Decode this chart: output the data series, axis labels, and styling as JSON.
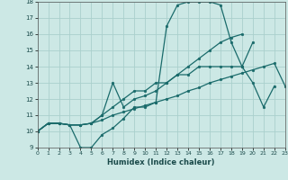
{
  "xlabel": "Humidex (Indice chaleur)",
  "xlim": [
    0,
    23
  ],
  "ylim": [
    9,
    18
  ],
  "xticks": [
    0,
    1,
    2,
    3,
    4,
    5,
    6,
    7,
    8,
    9,
    10,
    11,
    12,
    13,
    14,
    15,
    16,
    17,
    18,
    19,
    20,
    21,
    22,
    23
  ],
  "yticks": [
    9,
    10,
    11,
    12,
    13,
    14,
    15,
    16,
    17,
    18
  ],
  "background_color": "#cce8e5",
  "grid_color": "#aad0cc",
  "line_color": "#1a6b6b",
  "lines": [
    {
      "x": [
        0,
        1,
        2,
        3,
        4,
        5,
        6,
        7,
        8,
        9,
        10,
        11,
        12,
        13,
        14,
        15,
        16,
        17,
        18,
        19,
        20
      ],
      "y": [
        10.0,
        10.5,
        10.5,
        10.4,
        9.0,
        9.0,
        9.8,
        10.2,
        10.8,
        11.5,
        11.5,
        11.8,
        16.5,
        17.8,
        18.0,
        18.0,
        18.0,
        17.8,
        15.5,
        14.0,
        15.5
      ]
    },
    {
      "x": [
        0,
        1,
        2,
        3,
        4,
        5,
        6,
        7,
        8,
        9,
        10,
        11,
        12,
        13,
        14,
        15,
        16,
        17,
        18,
        19
      ],
      "y": [
        10.0,
        10.5,
        10.5,
        10.4,
        10.4,
        10.5,
        11.0,
        13.0,
        11.5,
        12.0,
        12.2,
        12.5,
        13.0,
        13.5,
        14.0,
        14.5,
        15.0,
        15.5,
        15.8,
        16.0
      ]
    },
    {
      "x": [
        0,
        1,
        2,
        3,
        4,
        5,
        6,
        7,
        8,
        9,
        10,
        11,
        12,
        13,
        14,
        15,
        16,
        17,
        18,
        19,
        20,
        21,
        22
      ],
      "y": [
        10.0,
        10.5,
        10.5,
        10.4,
        10.4,
        10.5,
        11.0,
        11.5,
        12.0,
        12.5,
        12.5,
        13.0,
        13.0,
        13.5,
        13.5,
        14.0,
        14.0,
        14.0,
        14.0,
        14.0,
        13.0,
        11.5,
        12.8
      ]
    },
    {
      "x": [
        0,
        1,
        2,
        3,
        4,
        5,
        6,
        7,
        8,
        9,
        10,
        11,
        12,
        13,
        14,
        15,
        16,
        17,
        18,
        19,
        20,
        21,
        22,
        23
      ],
      "y": [
        10.0,
        10.5,
        10.5,
        10.4,
        10.4,
        10.5,
        10.7,
        11.0,
        11.2,
        11.4,
        11.6,
        11.8,
        12.0,
        12.2,
        12.5,
        12.7,
        13.0,
        13.2,
        13.4,
        13.6,
        13.8,
        14.0,
        14.2,
        12.8
      ]
    }
  ]
}
